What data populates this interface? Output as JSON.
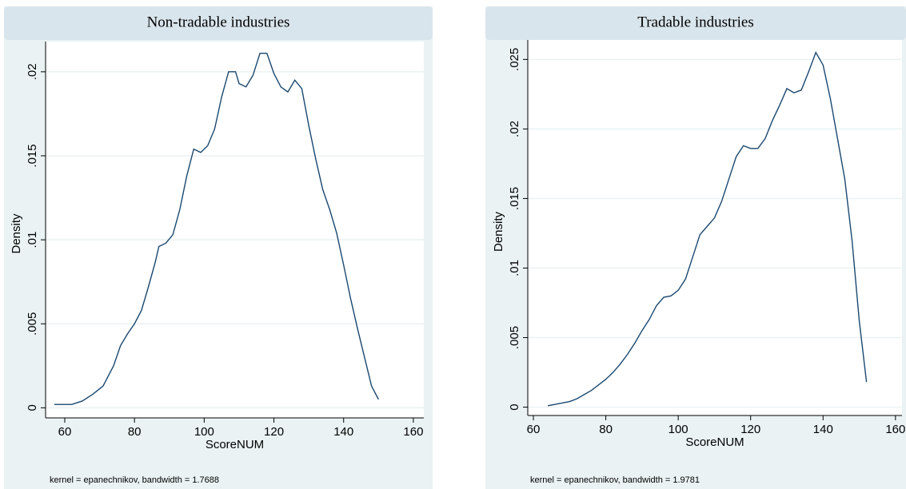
{
  "chart_data": [
    {
      "type": "line",
      "title": "Non-tradable  industries",
      "x_label": "ScoreNUM",
      "y_label": "Density",
      "note": "kernel = epanechnikov, bandwidth = 1.7688",
      "color": "#1a476f",
      "grid": true,
      "xlim": [
        54.5,
        163
      ],
      "ylim": [
        -0.0006,
        0.0218
      ],
      "xticks": [
        60,
        80,
        100,
        120,
        140,
        160
      ],
      "yticks": [
        0,
        {
          "value": 0.005,
          "label": ".005"
        },
        {
          "value": 0.01,
          "label": ".01"
        },
        {
          "value": 0.015,
          "label": ".015"
        },
        {
          "value": 0.02,
          "label": ".02"
        }
      ],
      "x": [
        57,
        62,
        65,
        68,
        71,
        74,
        76,
        78,
        80,
        82,
        84,
        86,
        87,
        89,
        91,
        93,
        95,
        97,
        99,
        101,
        103,
        105,
        107,
        109,
        110,
        112,
        114,
        116,
        118,
        120,
        122,
        124,
        126,
        128,
        130,
        132,
        134,
        136,
        138,
        140,
        142,
        144,
        146,
        148,
        150
      ],
      "values": [
        0.0002,
        0.0002,
        0.0004,
        0.0008,
        0.0013,
        0.0025,
        0.0037,
        0.0044,
        0.005,
        0.0058,
        0.0072,
        0.0087,
        0.0096,
        0.0098,
        0.0103,
        0.0118,
        0.0138,
        0.0154,
        0.0152,
        0.0156,
        0.0166,
        0.0185,
        0.02,
        0.02,
        0.0193,
        0.0191,
        0.0198,
        0.0211,
        0.0211,
        0.0199,
        0.0191,
        0.0188,
        0.0195,
        0.019,
        0.0168,
        0.0148,
        0.013,
        0.0118,
        0.0104,
        0.0085,
        0.0065,
        0.0047,
        0.003,
        0.0013,
        0.0005
      ]
    },
    {
      "type": "line",
      "title": "Tradable  industries",
      "x_label": "ScoreNUM",
      "y_label": "Density",
      "note": "kernel = epanechnikov, bandwidth = 1.9781",
      "color": "#1a476f",
      "grid": true,
      "xlim": [
        58.45,
        161.8
      ],
      "ylim": [
        -0.0006,
        0.0264
      ],
      "xticks": [
        60,
        80,
        100,
        120,
        140,
        160
      ],
      "yticks": [
        0,
        {
          "value": 0.005,
          "label": ".005"
        },
        {
          "value": 0.01,
          "label": ".01"
        },
        {
          "value": 0.015,
          "label": ".015"
        },
        {
          "value": 0.02,
          "label": ".02"
        },
        {
          "value": 0.025,
          "label": ".025"
        }
      ],
      "x": [
        64,
        66,
        68,
        70,
        72,
        74,
        76,
        78,
        80,
        82,
        84,
        86,
        88,
        90,
        92,
        94,
        96,
        98,
        100,
        102,
        104,
        106,
        108,
        110,
        112,
        114,
        116,
        118,
        120,
        122,
        124,
        126,
        128,
        130,
        132,
        134,
        136,
        138,
        140,
        142,
        144,
        146,
        148,
        150,
        152
      ],
      "values": [
        0.0001,
        0.0002,
        0.0003,
        0.0004,
        0.0006,
        0.0009,
        0.0012,
        0.0016,
        0.002,
        0.0025,
        0.0031,
        0.0038,
        0.0046,
        0.0055,
        0.0063,
        0.0073,
        0.0079,
        0.008,
        0.0084,
        0.0092,
        0.0108,
        0.0124,
        0.013,
        0.0136,
        0.0148,
        0.0164,
        0.018,
        0.0188,
        0.0186,
        0.0186,
        0.0193,
        0.0206,
        0.0217,
        0.0229,
        0.0226,
        0.0228,
        0.0241,
        0.0255,
        0.0246,
        0.0222,
        0.0193,
        0.0164,
        0.012,
        0.0062,
        0.0018
      ]
    }
  ]
}
